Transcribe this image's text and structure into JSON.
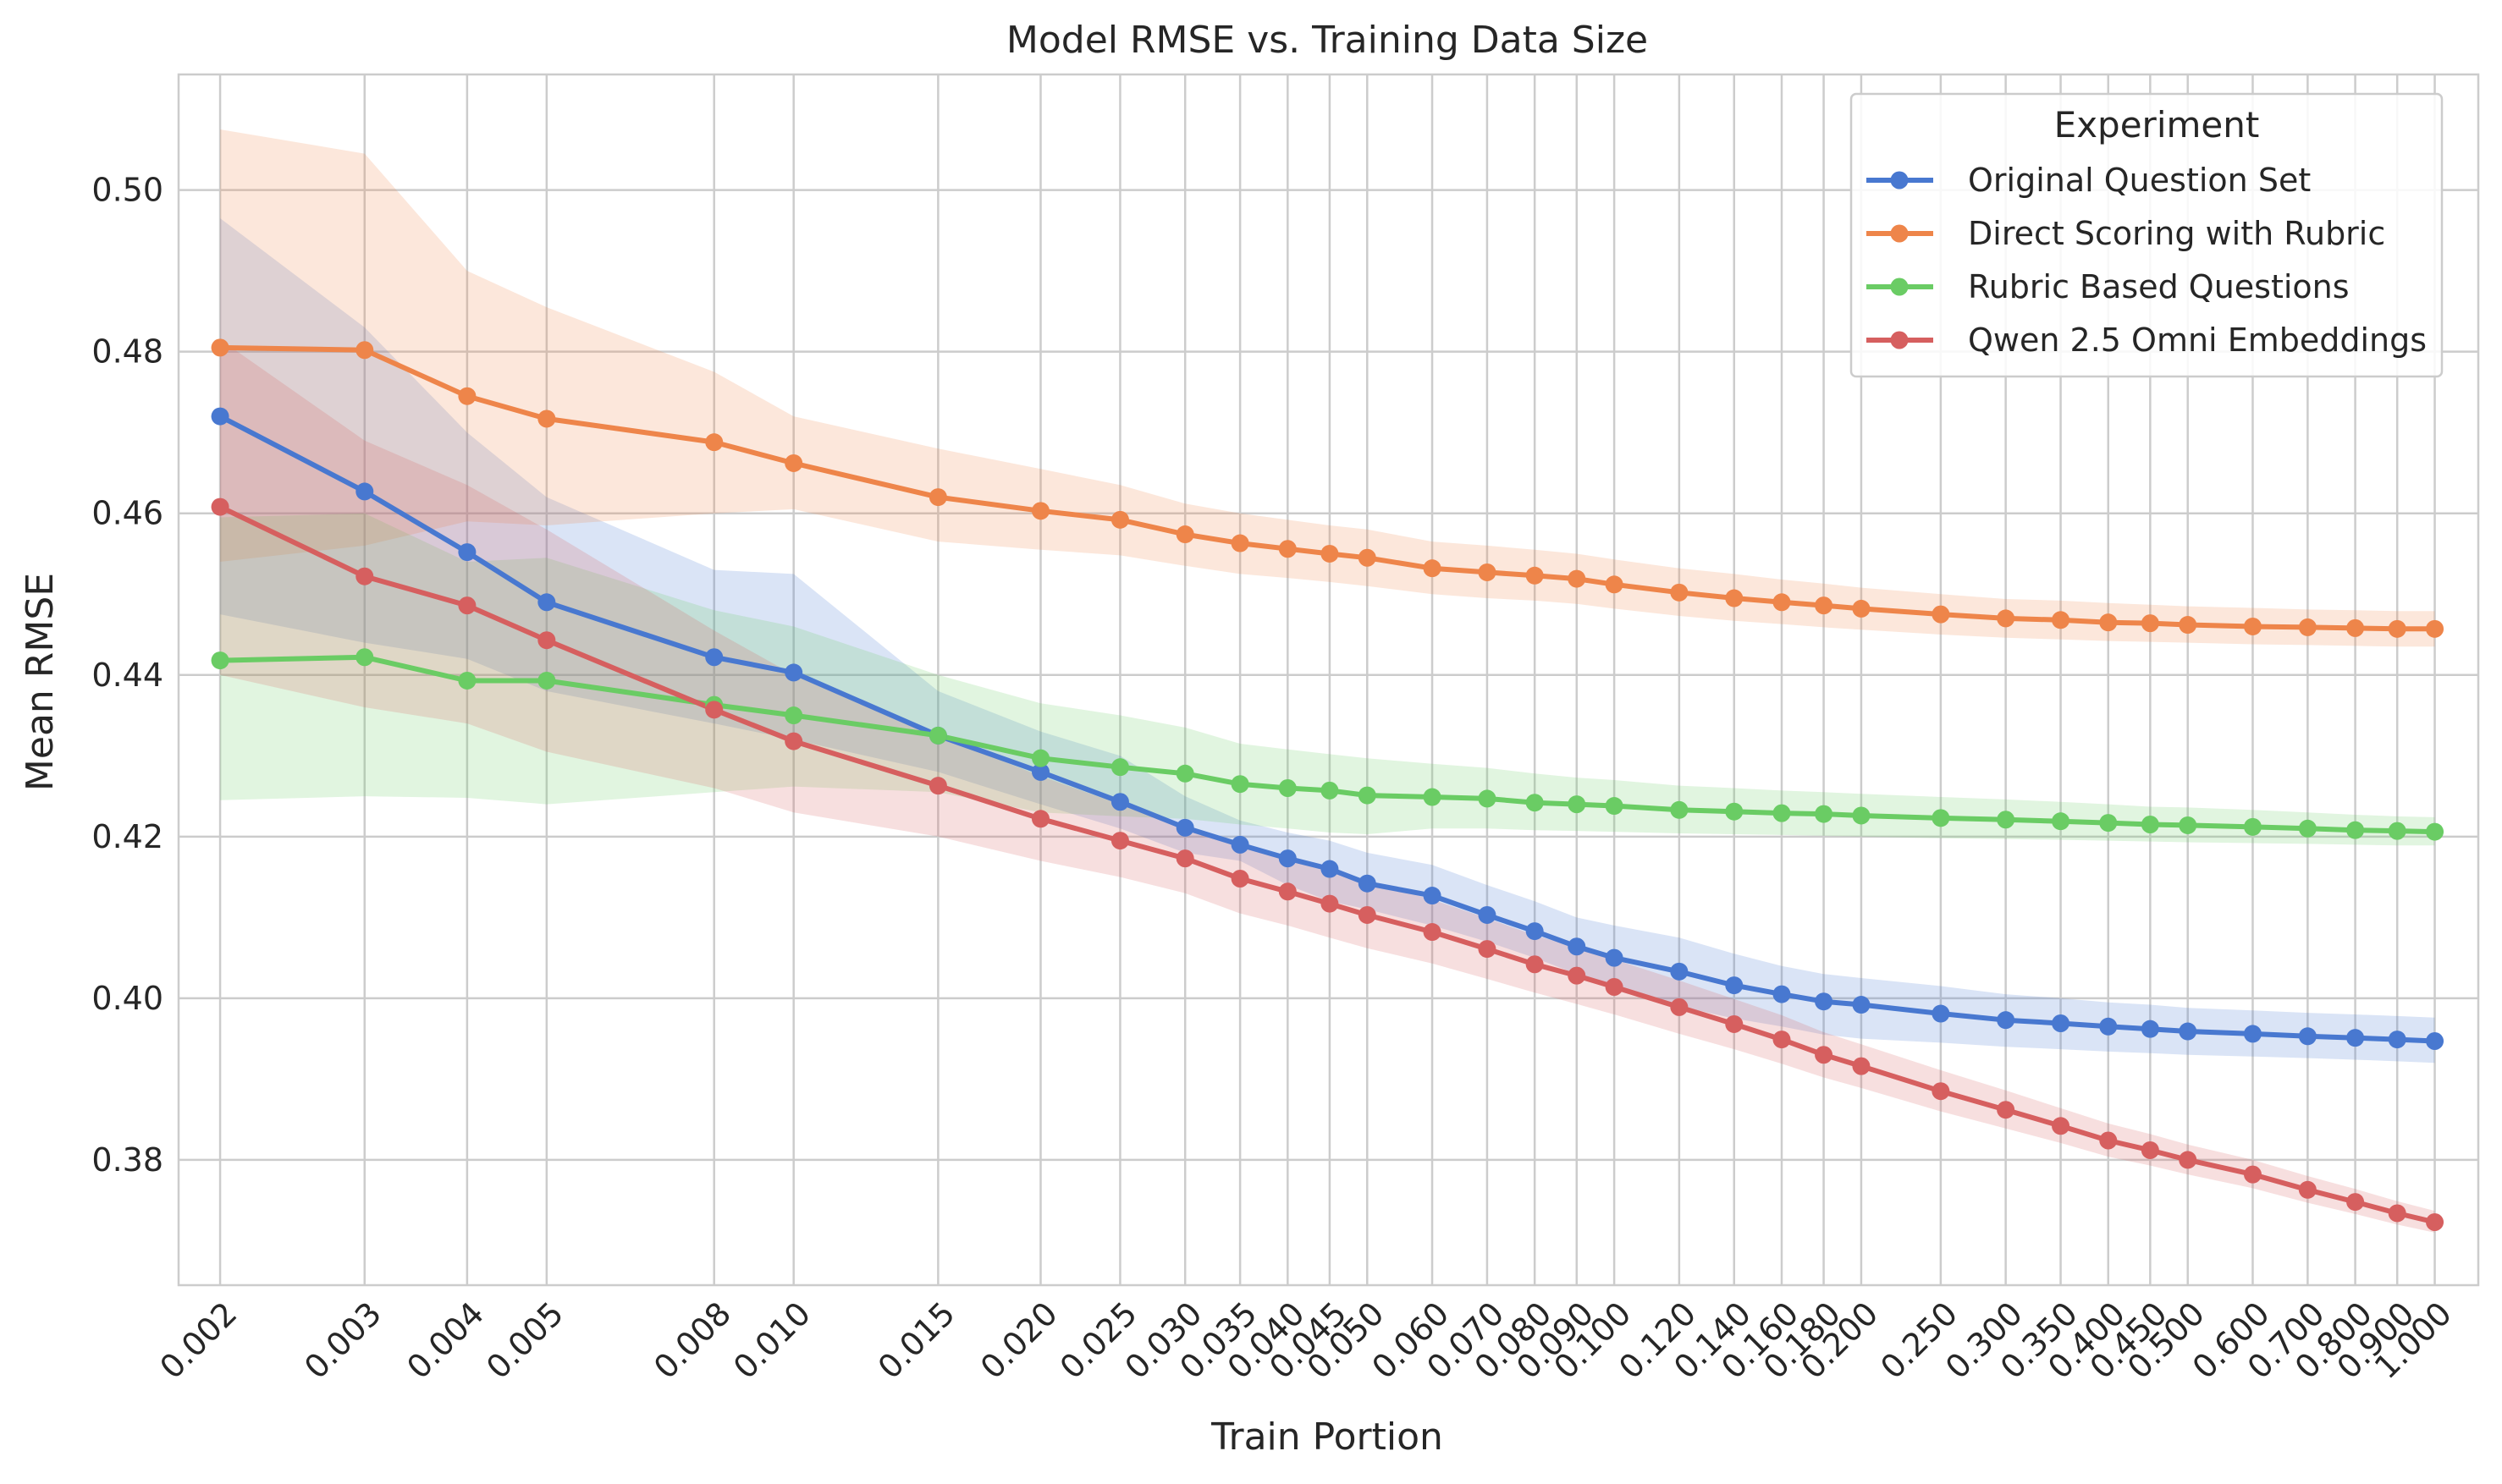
{
  "chart_data": {
    "type": "line",
    "title": "Model RMSE vs. Training Data Size",
    "xlabel": "Train Portion",
    "ylabel": "Mean RMSE",
    "x_scale": "log",
    "grid": true,
    "legend_title": "Experiment",
    "legend_position": "top-right",
    "ylim": [
      0.3645,
      0.5143
    ],
    "xlim": [
      0.00178,
      1.13
    ],
    "y_ticks": [
      0.38,
      0.4,
      0.42,
      0.44,
      0.46,
      0.48,
      0.5
    ],
    "y_tick_labels": [
      "0.38",
      "0.40",
      "0.42",
      "0.44",
      "0.46",
      "0.48",
      "0.50"
    ],
    "x": [
      0.002,
      0.003,
      0.004,
      0.005,
      0.008,
      0.01,
      0.015,
      0.02,
      0.025,
      0.03,
      0.035,
      0.04,
      0.045,
      0.05,
      0.06,
      0.07,
      0.08,
      0.09,
      0.1,
      0.12,
      0.14,
      0.16,
      0.18,
      0.2,
      0.25,
      0.3,
      0.35,
      0.4,
      0.45,
      0.5,
      0.6,
      0.7,
      0.8,
      0.9,
      1.0
    ],
    "x_tick_labels": [
      "0.002",
      "0.003",
      "0.004",
      "0.005",
      "0.008",
      "0.010",
      "0.015",
      "0.020",
      "0.025",
      "0.030",
      "0.035",
      "0.040",
      "0.045",
      "0.050",
      "0.060",
      "0.070",
      "0.080",
      "0.090",
      "0.100",
      "0.120",
      "0.140",
      "0.160",
      "0.180",
      "0.200",
      "0.250",
      "0.300",
      "0.350",
      "0.400",
      "0.450",
      "0.500",
      "0.600",
      "0.700",
      "0.800",
      "0.900",
      "1.000"
    ],
    "series": [
      {
        "name": "Original Question Set",
        "color": "#4878d0",
        "values": [
          0.472,
          0.4627,
          0.4552,
          0.449,
          0.4422,
          0.4403,
          0.4325,
          0.428,
          0.4243,
          0.4211,
          0.419,
          0.4173,
          0.416,
          0.4142,
          0.4127,
          0.4103,
          0.4083,
          0.4064,
          0.405,
          0.4033,
          0.4016,
          0.4005,
          0.3996,
          0.3992,
          0.3981,
          0.3973,
          0.3969,
          0.3965,
          0.3962,
          0.3959,
          0.3956,
          0.3953,
          0.3951,
          0.3949,
          0.3947
        ],
        "lower": [
          0.4475,
          0.444,
          0.442,
          0.438,
          0.434,
          0.432,
          0.428,
          0.424,
          0.421,
          0.418,
          0.417,
          0.414,
          0.412,
          0.411,
          0.409,
          0.407,
          0.405,
          0.403,
          0.401,
          0.399,
          0.3975,
          0.3965,
          0.3955,
          0.395,
          0.3945,
          0.394,
          0.3937,
          0.3934,
          0.3932,
          0.393,
          0.3928,
          0.3926,
          0.3924,
          0.3922,
          0.392
        ],
        "upper": [
          0.4965,
          0.483,
          0.47,
          0.462,
          0.453,
          0.4525,
          0.438,
          0.433,
          0.43,
          0.425,
          0.422,
          0.4205,
          0.4195,
          0.418,
          0.4165,
          0.414,
          0.412,
          0.41,
          0.409,
          0.4075,
          0.4055,
          0.404,
          0.403,
          0.4025,
          0.4015,
          0.4005,
          0.4,
          0.3995,
          0.3992,
          0.3988,
          0.3985,
          0.3982,
          0.398,
          0.3978,
          0.3976
        ]
      },
      {
        "name": "Direct Scoring with Rubric",
        "color": "#ee854a",
        "values": [
          0.4805,
          0.4802,
          0.4745,
          0.4717,
          0.4688,
          0.4662,
          0.462,
          0.4603,
          0.4592,
          0.4574,
          0.4563,
          0.4556,
          0.455,
          0.4545,
          0.4532,
          0.4527,
          0.4523,
          0.4519,
          0.4512,
          0.4502,
          0.4495,
          0.449,
          0.4486,
          0.4482,
          0.4475,
          0.447,
          0.4468,
          0.4465,
          0.4464,
          0.4462,
          0.446,
          0.4459,
          0.4458,
          0.4457,
          0.4457
        ],
        "lower": [
          0.454,
          0.456,
          0.459,
          0.4585,
          0.46,
          0.4605,
          0.4565,
          0.4555,
          0.4548,
          0.4535,
          0.4525,
          0.452,
          0.4515,
          0.451,
          0.45,
          0.4495,
          0.4492,
          0.4488,
          0.4482,
          0.4473,
          0.4467,
          0.4463,
          0.4459,
          0.4456,
          0.445,
          0.4446,
          0.4444,
          0.4442,
          0.4441,
          0.444,
          0.4438,
          0.4437,
          0.4436,
          0.4435,
          0.4435
        ],
        "upper": [
          0.5075,
          0.5045,
          0.49,
          0.4855,
          0.4775,
          0.472,
          0.468,
          0.4655,
          0.4635,
          0.4612,
          0.46,
          0.4592,
          0.4585,
          0.458,
          0.4565,
          0.456,
          0.4555,
          0.455,
          0.4543,
          0.4532,
          0.4525,
          0.4518,
          0.4513,
          0.4508,
          0.45,
          0.4494,
          0.4492,
          0.4489,
          0.4487,
          0.4485,
          0.4483,
          0.4481,
          0.448,
          0.4479,
          0.4479
        ]
      },
      {
        "name": "Rubric Based Questions",
        "color": "#6acc64",
        "values": [
          0.4418,
          0.4422,
          0.4393,
          0.4393,
          0.4363,
          0.435,
          0.4325,
          0.4297,
          0.4286,
          0.4278,
          0.4265,
          0.426,
          0.4257,
          0.4251,
          0.4249,
          0.4247,
          0.4242,
          0.424,
          0.4238,
          0.4233,
          0.4231,
          0.4229,
          0.4228,
          0.4226,
          0.4223,
          0.4221,
          0.4219,
          0.4217,
          0.4215,
          0.4214,
          0.4212,
          0.421,
          0.4208,
          0.4207,
          0.4206
        ],
        "lower": [
          0.4245,
          0.425,
          0.4248,
          0.424,
          0.4255,
          0.4262,
          0.4255,
          0.423,
          0.4225,
          0.4222,
          0.4215,
          0.421,
          0.4205,
          0.4203,
          0.421,
          0.421,
          0.4208,
          0.4207,
          0.4206,
          0.4204,
          0.4203,
          0.4202,
          0.4201,
          0.42,
          0.4198,
          0.4197,
          0.4196,
          0.4195,
          0.4194,
          0.4193,
          0.4192,
          0.4191,
          0.419,
          0.4189,
          0.4189
        ],
        "upper": [
          0.4595,
          0.46,
          0.454,
          0.4545,
          0.448,
          0.446,
          0.44,
          0.4365,
          0.435,
          0.4335,
          0.4315,
          0.4308,
          0.4302,
          0.4297,
          0.429,
          0.4285,
          0.4278,
          0.4273,
          0.427,
          0.4263,
          0.426,
          0.4257,
          0.4255,
          0.4253,
          0.4249,
          0.4246,
          0.4243,
          0.424,
          0.4237,
          0.4236,
          0.4233,
          0.423,
          0.4227,
          0.4225,
          0.4224
        ]
      },
      {
        "name": "Qwen 2.5 Omni Embeddings",
        "color": "#d65f5f",
        "values": [
          0.4608,
          0.4522,
          0.4486,
          0.4443,
          0.4357,
          0.4318,
          0.4263,
          0.4222,
          0.4195,
          0.4173,
          0.4148,
          0.4132,
          0.4117,
          0.4103,
          0.4082,
          0.4061,
          0.4042,
          0.4028,
          0.4014,
          0.3989,
          0.3968,
          0.3949,
          0.393,
          0.3916,
          0.3885,
          0.3862,
          0.3842,
          0.3824,
          0.3812,
          0.38,
          0.3782,
          0.3763,
          0.3748,
          0.3734,
          0.3723
        ],
        "lower": [
          0.44,
          0.436,
          0.434,
          0.4305,
          0.426,
          0.423,
          0.42,
          0.417,
          0.415,
          0.413,
          0.4105,
          0.409,
          0.4075,
          0.4062,
          0.4043,
          0.4024,
          0.4007,
          0.3993,
          0.398,
          0.3956,
          0.3937,
          0.3919,
          0.3902,
          0.3889,
          0.386,
          0.3839,
          0.3821,
          0.3804,
          0.3793,
          0.3782,
          0.3765,
          0.3747,
          0.3733,
          0.372,
          0.371
        ],
        "upper": [
          0.4815,
          0.469,
          0.4635,
          0.458,
          0.4455,
          0.44,
          0.4325,
          0.4275,
          0.424,
          0.4215,
          0.419,
          0.4173,
          0.4158,
          0.4145,
          0.4122,
          0.4099,
          0.4078,
          0.4063,
          0.4048,
          0.4022,
          0.3999,
          0.3979,
          0.3958,
          0.3943,
          0.3911,
          0.3886,
          0.3864,
          0.3845,
          0.3832,
          0.3819,
          0.38,
          0.378,
          0.3764,
          0.3749,
          0.3737
        ]
      }
    ]
  }
}
